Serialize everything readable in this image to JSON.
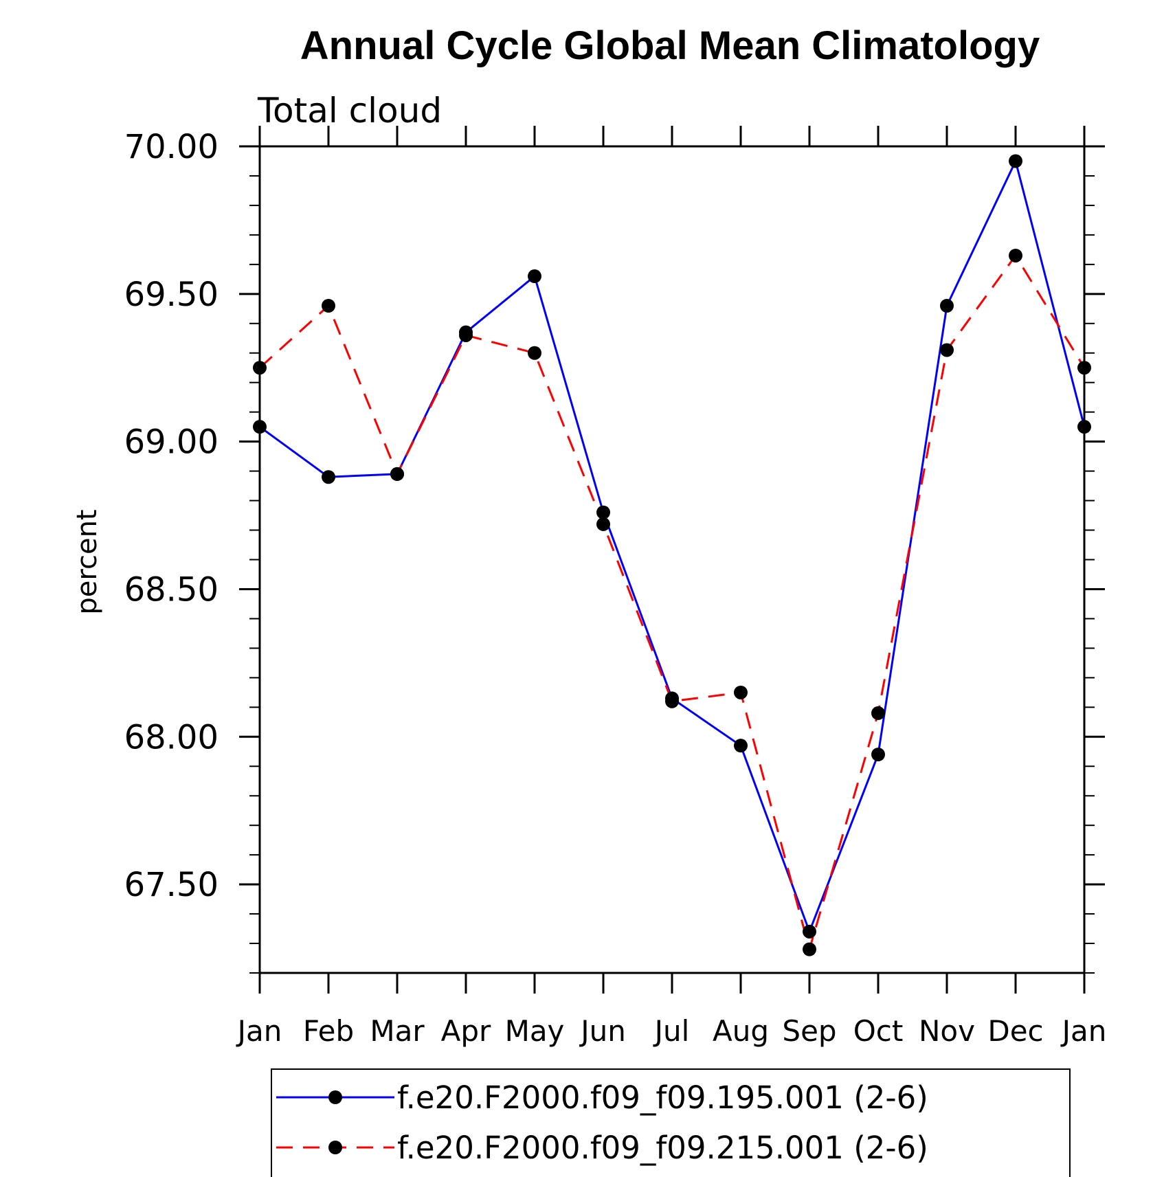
{
  "chart_data": {
    "type": "line",
    "title": "Annual Cycle Global Mean Climatology",
    "subtitle": "Total cloud",
    "xlabel": "",
    "ylabel": "percent",
    "categories": [
      "Jan",
      "Feb",
      "Mar",
      "Apr",
      "May",
      "Jun",
      "Jul",
      "Aug",
      "Sep",
      "Oct",
      "Nov",
      "Dec",
      "Jan"
    ],
    "ylim": [
      67.2,
      70.0
    ],
    "yticks": [
      "67.50",
      "68.00",
      "68.50",
      "69.00",
      "69.50",
      "70.00"
    ],
    "ytick_values": [
      67.5,
      68.0,
      68.5,
      69.0,
      69.5,
      70.0
    ],
    "grid": false,
    "legend_position": "bottom",
    "series": [
      {
        "name": "f.e20.F2000.f09_f09.195.001 (2-6)",
        "color": "#0000ff",
        "line_style": "solid",
        "marker": "filled-circle",
        "values": [
          69.05,
          68.88,
          68.89,
          69.37,
          69.56,
          68.76,
          68.13,
          67.97,
          67.34,
          67.94,
          69.46,
          69.95,
          69.05
        ]
      },
      {
        "name": "f.e20.F2000.f09_f09.215.001 (2-6)",
        "color": "#ff0000",
        "line_style": "dashed",
        "marker": "filled-circle",
        "values": [
          69.25,
          69.46,
          68.89,
          69.36,
          69.3,
          68.72,
          68.12,
          68.15,
          67.28,
          68.08,
          69.31,
          69.63,
          69.25
        ]
      }
    ]
  }
}
